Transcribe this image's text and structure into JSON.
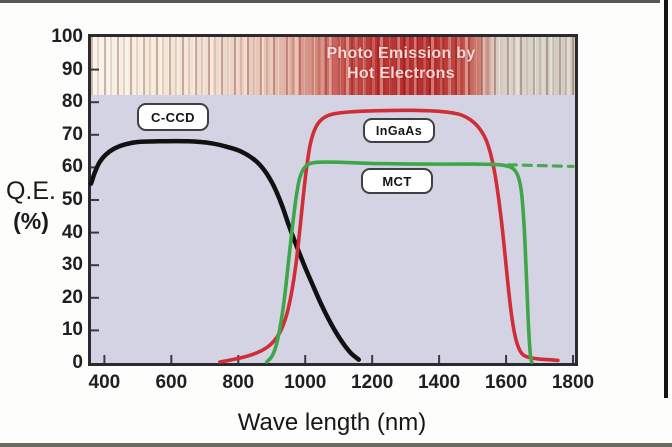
{
  "figure": {
    "x_axis_title": "Wave length (nm)",
    "y_axis_title_line1": "Q.E.",
    "y_axis_title_line2": "(%)",
    "band_label_line1": "Photo Emission by",
    "band_label_line2": "Hot Electrons"
  },
  "labels": {
    "ccd": "C-CCD",
    "ingaas": "InGaAs",
    "mct": "MCT"
  },
  "colors": {
    "ccd": "#111111",
    "ingaas": "#cf2e36",
    "mct": "#3fa648",
    "plot_bg": "#d4d3e3",
    "axis": "#2a2a30",
    "band_red": "#b92e2e",
    "band_cream": "#f8f3e8",
    "band_text": "#f6d7d2",
    "tick": "#3a3a3e"
  },
  "chart_data": {
    "type": "line",
    "title": "",
    "xlabel": "Wave length (nm)",
    "ylabel": "Q.E. (%)",
    "xlim": [
      360,
      1800
    ],
    "ylim": [
      0,
      100
    ],
    "grid": false,
    "legend_position": "inline-boxed-labels",
    "x_ticks": [
      400,
      600,
      800,
      1000,
      1200,
      1400,
      1600,
      1800
    ],
    "y_ticks": [
      0,
      10,
      20,
      30,
      40,
      50,
      60,
      70,
      80,
      90,
      100
    ],
    "annotation_band": {
      "label": "Photo Emission by Hot Electrons",
      "x_range": [
        360,
        1800
      ],
      "y_range": [
        82,
        100
      ],
      "style": "red striped barcode band"
    },
    "series": [
      {
        "name": "C-CCD",
        "color": "#111111",
        "style": "solid",
        "width": 4.5,
        "points": [
          [
            360,
            55
          ],
          [
            370,
            58
          ],
          [
            385,
            61.5
          ],
          [
            405,
            64
          ],
          [
            430,
            65.8
          ],
          [
            460,
            67
          ],
          [
            500,
            67.8
          ],
          [
            560,
            68
          ],
          [
            650,
            68
          ],
          [
            720,
            67.4
          ],
          [
            770,
            66.2
          ],
          [
            810,
            64.8
          ],
          [
            850,
            62.2
          ],
          [
            880,
            58.8
          ],
          [
            905,
            54.5
          ],
          [
            930,
            48.5
          ],
          [
            950,
            42.5
          ],
          [
            970,
            37
          ],
          [
            995,
            30.5
          ],
          [
            1020,
            24.5
          ],
          [
            1050,
            17.5
          ],
          [
            1080,
            11.5
          ],
          [
            1110,
            6.5
          ],
          [
            1135,
            3.2
          ],
          [
            1160,
            1
          ]
        ]
      },
      {
        "name": "InGaAs",
        "color": "#cf2e36",
        "style": "solid",
        "width": 3.6,
        "points": [
          [
            745,
            0.3
          ],
          [
            790,
            1.2
          ],
          [
            830,
            2.2
          ],
          [
            870,
            3.8
          ],
          [
            900,
            6
          ],
          [
            925,
            9.5
          ],
          [
            945,
            15
          ],
          [
            960,
            22
          ],
          [
            972,
            30
          ],
          [
            983,
            40
          ],
          [
            993,
            50
          ],
          [
            1003,
            59
          ],
          [
            1015,
            67
          ],
          [
            1030,
            72
          ],
          [
            1050,
            74.8
          ],
          [
            1080,
            76.3
          ],
          [
            1130,
            77
          ],
          [
            1220,
            77.4
          ],
          [
            1320,
            77.5
          ],
          [
            1400,
            77.2
          ],
          [
            1460,
            76.3
          ],
          [
            1495,
            74.5
          ],
          [
            1520,
            72
          ],
          [
            1540,
            68.5
          ],
          [
            1553,
            64.5
          ],
          [
            1565,
            59
          ],
          [
            1577,
            51
          ],
          [
            1588,
            42
          ],
          [
            1598,
            32
          ],
          [
            1608,
            22
          ],
          [
            1618,
            13.5
          ],
          [
            1630,
            7
          ],
          [
            1645,
            3.2
          ],
          [
            1665,
            1.8
          ],
          [
            1700,
            1.2
          ],
          [
            1730,
            1
          ],
          [
            1755,
            0.8
          ]
        ]
      },
      {
        "name": "MCT",
        "color": "#3fa648",
        "style": "solid",
        "width": 3.6,
        "points": [
          [
            885,
            0.3
          ],
          [
            900,
            2
          ],
          [
            912,
            5
          ],
          [
            925,
            11
          ],
          [
            938,
            20
          ],
          [
            950,
            31
          ],
          [
            962,
            42
          ],
          [
            973,
            51
          ],
          [
            983,
            56.5
          ],
          [
            995,
            59.5
          ],
          [
            1010,
            61
          ],
          [
            1040,
            61.6
          ],
          [
            1100,
            61.6
          ],
          [
            1200,
            61.2
          ],
          [
            1350,
            61
          ],
          [
            1500,
            61
          ],
          [
            1580,
            60.8
          ],
          [
            1615,
            60
          ],
          [
            1632,
            58.2
          ],
          [
            1643,
            54.5
          ],
          [
            1650,
            48
          ],
          [
            1656,
            38
          ],
          [
            1661,
            26
          ],
          [
            1666,
            14
          ],
          [
            1670,
            6
          ],
          [
            1674,
            1.5
          ],
          [
            1677,
            0.3
          ]
        ]
      },
      {
        "name": "MCT extended (dashed)",
        "color": "#4aa853",
        "style": "dashed",
        "width": 3.2,
        "points": [
          [
            1562,
            60.9
          ],
          [
            1680,
            60.6
          ],
          [
            1800,
            60.3
          ]
        ]
      }
    ]
  }
}
